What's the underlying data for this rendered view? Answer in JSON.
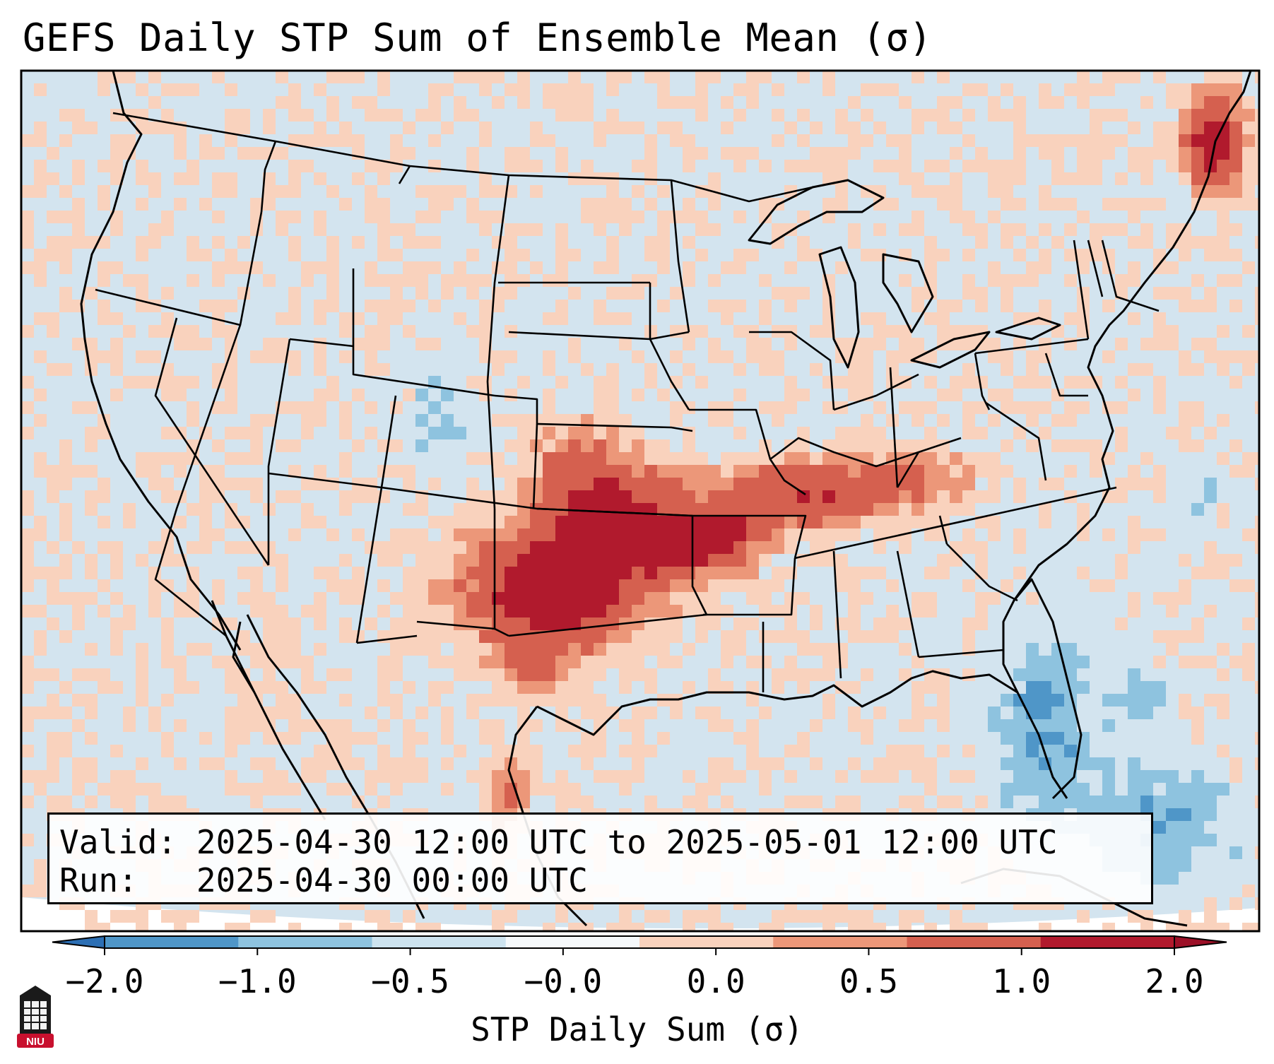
{
  "title": "GEFS Daily STP Sum of Ensemble Mean (σ)",
  "info": {
    "valid_label": "Valid:",
    "valid_value": "2025-04-30 12:00 UTC to 2025-05-01 12:00 UTC",
    "run_label": "Run:",
    "run_value": "2025-04-30 00:00 UTC"
  },
  "colorbar": {
    "label": "STP Daily Sum (σ)",
    "ticks": [
      "−2.0",
      "−1.0",
      "−0.5",
      "−0.0",
      "0.0",
      "0.5",
      "1.0",
      "2.0"
    ],
    "colors": [
      "#4f96c8",
      "#8ec3df",
      "#cde3ef",
      "#f5f8fa",
      "#f9d2bd",
      "#ec9779",
      "#d5604f",
      "#b11a2d"
    ],
    "extend_low": "#2c6fb4",
    "extend_high": "#9c1027"
  },
  "map": {
    "ocean_color": "#d3e4ef",
    "region": "CONUS",
    "features": [
      {
        "name": "Oklahoma–North Texas–Kansas core",
        "value": 2.0
      },
      {
        "name": "Missouri–Kentucky–Tennessee band",
        "value": 1.0
      },
      {
        "name": "Maine maximum",
        "value": 2.0
      },
      {
        "name": "Mexico maximum",
        "value": 1.0
      }
    ]
  },
  "logo": {
    "text": "NIU",
    "color": "#c8102e"
  }
}
